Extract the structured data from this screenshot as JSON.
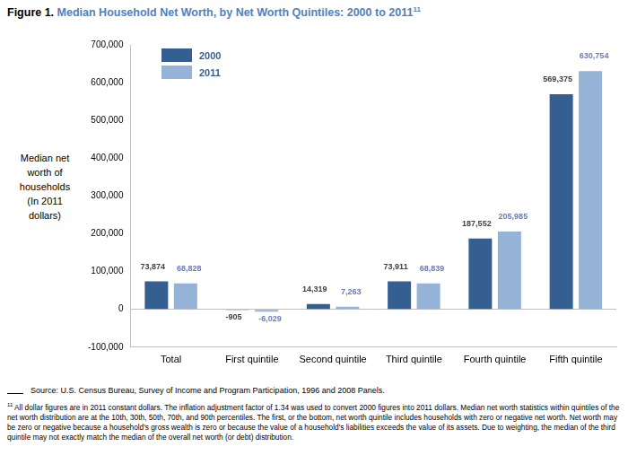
{
  "chart_data": {
    "type": "bar",
    "title_label": "Figure 1.",
    "title": "Median Household Net Worth, by Net Worth Quintiles: 2000 to 2011",
    "footnote_mark": "11",
    "y_label": [
      "Median net",
      "worth of",
      "households",
      "(In 2011",
      "dollars)"
    ],
    "categories": [
      "Total",
      "First quintile",
      "Second quintile",
      "Third quintile",
      "Fourth quintile",
      "Fifth quintile"
    ],
    "series": [
      {
        "name": "2000",
        "color": "#365f91",
        "values": [
          73874,
          -905,
          14319,
          73911,
          187552,
          569375
        ],
        "value_labels": [
          "73,874",
          "-905",
          "14,319",
          "73,911",
          "187,552",
          "569,375"
        ]
      },
      {
        "name": "2011",
        "color": "#95b3d7",
        "values": [
          68828,
          -6029,
          7263,
          68839,
          205985,
          630754
        ],
        "value_labels": [
          "68,828",
          "-6,029",
          "7,263",
          "68,839",
          "205,985",
          "630,754"
        ]
      }
    ],
    "ylim": [
      -100000,
      700000
    ],
    "yticks": [
      {
        "value": -100000,
        "label": "-100,000"
      },
      0,
      {
        "value": 100000,
        "label": "100,000"
      },
      {
        "value": 200000,
        "label": "200,000"
      },
      {
        "value": 300000,
        "label": "300,000"
      },
      {
        "value": 400000,
        "label": "400,000"
      },
      {
        "value": 500000,
        "label": "500,000"
      },
      {
        "value": 600000,
        "label": "600,000"
      },
      {
        "value": 700000,
        "label": "700,000"
      }
    ],
    "grid": false,
    "legend": "upper left",
    "data_labels": true,
    "source": "Source: U.S. Census Bureau, Survey of Income and Program Participation, 1996 and 2008 Panels.",
    "footnote": "All dollar figures are in 2011 constant dollars. The inflation adjustment factor of 1.34 was used to convert 2000 figures into 2011 dollars. Median net worth statistics within quintiles of the net worth distribution are at the 10th, 30th, 50th, 70th, and 90th percentiles. The first, or the bottom, net worth quintile includes households with zero or negative net worth. Net worth may be zero or negative because a household's gross wealth is zero or because the value of a household's liabilities exceeds the value of its assets. Due to weighting, the median of the third quintile may not exactly match the median of the overall net worth (or debt) distribution."
  }
}
